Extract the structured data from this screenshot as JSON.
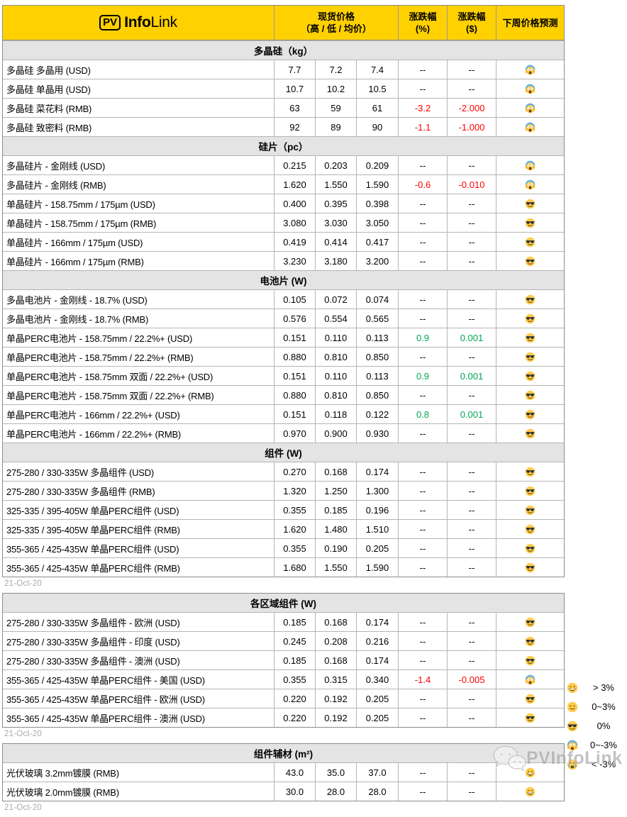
{
  "brand": {
    "pv": "PV",
    "info": "Info",
    "link": "Link"
  },
  "columns": {
    "price_title": "现货价格",
    "price_sub": "（高 / 低 / 均价）",
    "pct_line1": "涨跌幅",
    "pct_line2": "(%)",
    "usd_line1": "涨跌幅",
    "usd_line2": "($)",
    "forecast": "下周价格预测"
  },
  "colors": {
    "header_bg": "#FFD100",
    "section_bg": "#E4E4E4",
    "positive": "#00A651",
    "negative": "#FF0000",
    "date_text": "#A9A9A9"
  },
  "tables": [
    {
      "show_header": true,
      "date": "21-Oct-20",
      "sections": [
        {
          "title": "多晶硅（kg）",
          "rows": [
            {
              "label": "多晶硅 多晶用 (USD)",
              "high": "7.7",
              "low": "7.2",
              "avg": "7.4",
              "pct": "--",
              "usd": "--",
              "forecast": "scream-emoji"
            },
            {
              "label": "多晶硅 单晶用 (USD)",
              "high": "10.7",
              "low": "10.2",
              "avg": "10.5",
              "pct": "--",
              "usd": "--",
              "forecast": "scream-emoji"
            },
            {
              "label": "多晶硅 菜花料 (RMB)",
              "high": "63",
              "low": "59",
              "avg": "61",
              "pct": "-3.2",
              "usd": "-2.000",
              "forecast": "scream-emoji"
            },
            {
              "label": "多晶硅 致密料 (RMB)",
              "high": "92",
              "low": "89",
              "avg": "90",
              "pct": "-1.1",
              "usd": "-1.000",
              "forecast": "scream-emoji"
            }
          ]
        },
        {
          "title": "硅片（pc）",
          "rows": [
            {
              "label": "多晶硅片 - 金刚线 (USD)",
              "high": "0.215",
              "low": "0.203",
              "avg": "0.209",
              "pct": "--",
              "usd": "--",
              "forecast": "scream-emoji"
            },
            {
              "label": "多晶硅片 - 金刚线 (RMB)",
              "high": "1.620",
              "low": "1.550",
              "avg": "1.590",
              "pct": "-0.6",
              "usd": "-0.010",
              "forecast": "scream-emoji"
            },
            {
              "label": "单晶硅片 - 158.75mm / 175µm (USD)",
              "high": "0.400",
              "low": "0.395",
              "avg": "0.398",
              "pct": "--",
              "usd": "--",
              "forecast": "cool-emoji"
            },
            {
              "label": "单晶硅片 - 158.75mm / 175µm (RMB)",
              "high": "3.080",
              "low": "3.030",
              "avg": "3.050",
              "pct": "--",
              "usd": "--",
              "forecast": "cool-emoji"
            },
            {
              "label": "单晶硅片 - 166mm / 175µm (USD)",
              "high": "0.419",
              "low": "0.414",
              "avg": "0.417",
              "pct": "--",
              "usd": "--",
              "forecast": "cool-emoji"
            },
            {
              "label": "单晶硅片 - 166mm / 175µm (RMB)",
              "high": "3.230",
              "low": "3.180",
              "avg": "3.200",
              "pct": "--",
              "usd": "--",
              "forecast": "cool-emoji"
            }
          ]
        },
        {
          "title": "电池片 (W)",
          "rows": [
            {
              "label": "多晶电池片 - 金刚线 - 18.7% (USD)",
              "high": "0.105",
              "low": "0.072",
              "avg": "0.074",
              "pct": "--",
              "usd": "--",
              "forecast": "cool-emoji"
            },
            {
              "label": "多晶电池片 - 金刚线 - 18.7% (RMB)",
              "high": "0.576",
              "low": "0.554",
              "avg": "0.565",
              "pct": "--",
              "usd": "--",
              "forecast": "cool-emoji"
            },
            {
              "label": "单晶PERC电池片 - 158.75mm / 22.2%+ (USD)",
              "high": "0.151",
              "low": "0.110",
              "avg": "0.113",
              "pct": "0.9",
              "usd": "0.001",
              "forecast": "cool-emoji"
            },
            {
              "label": "单晶PERC电池片 - 158.75mm / 22.2%+ (RMB)",
              "high": "0.880",
              "low": "0.810",
              "avg": "0.850",
              "pct": "--",
              "usd": "--",
              "forecast": "cool-emoji"
            },
            {
              "label": "单晶PERC电池片 - 158.75mm 双面 / 22.2%+ (USD)",
              "high": "0.151",
              "low": "0.110",
              "avg": "0.113",
              "pct": "0.9",
              "usd": "0.001",
              "forecast": "cool-emoji"
            },
            {
              "label": "单晶PERC电池片 - 158.75mm 双面 / 22.2%+ (RMB)",
              "high": "0.880",
              "low": "0.810",
              "avg": "0.850",
              "pct": "--",
              "usd": "--",
              "forecast": "cool-emoji"
            },
            {
              "label": "单晶PERC电池片 - 166mm / 22.2%+ (USD)",
              "high": "0.151",
              "low": "0.118",
              "avg": "0.122",
              "pct": "0.8",
              "usd": "0.001",
              "forecast": "cool-emoji"
            },
            {
              "label": "单晶PERC电池片 - 166mm / 22.2%+ (RMB)",
              "high": "0.970",
              "low": "0.900",
              "avg": "0.930",
              "pct": "--",
              "usd": "--",
              "forecast": "cool-emoji"
            }
          ]
        },
        {
          "title": "组件 (W)",
          "rows": [
            {
              "label": "275-280 / 330-335W 多晶组件 (USD)",
              "high": "0.270",
              "low": "0.168",
              "avg": "0.174",
              "pct": "--",
              "usd": "--",
              "forecast": "cool-emoji"
            },
            {
              "label": "275-280 / 330-335W 多晶组件 (RMB)",
              "high": "1.320",
              "low": "1.250",
              "avg": "1.300",
              "pct": "--",
              "usd": "--",
              "forecast": "cool-emoji"
            },
            {
              "label": "325-335 / 395-405W 单晶PERC组件 (USD)",
              "high": "0.355",
              "low": "0.185",
              "avg": "0.196",
              "pct": "--",
              "usd": "--",
              "forecast": "cool-emoji"
            },
            {
              "label": "325-335 / 395-405W 单晶PERC组件 (RMB)",
              "high": "1.620",
              "low": "1.480",
              "avg": "1.510",
              "pct": "--",
              "usd": "--",
              "forecast": "cool-emoji"
            },
            {
              "label": "355-365 / 425-435W 单晶PERC组件 (USD)",
              "high": "0.355",
              "low": "0.190",
              "avg": "0.205",
              "pct": "--",
              "usd": "--",
              "forecast": "cool-emoji"
            },
            {
              "label": "355-365 / 425-435W 单晶PERC组件 (RMB)",
              "high": "1.680",
              "low": "1.550",
              "avg": "1.590",
              "pct": "--",
              "usd": "--",
              "forecast": "cool-emoji"
            }
          ]
        }
      ]
    },
    {
      "show_header": false,
      "date": "21-Oct-20",
      "sections": [
        {
          "title": "各区域组件 (W)",
          "rows": [
            {
              "label": "275-280 / 330-335W  多晶组件 - 欧洲 (USD)",
              "high": "0.185",
              "low": "0.168",
              "avg": "0.174",
              "pct": "--",
              "usd": "--",
              "forecast": "cool-emoji"
            },
            {
              "label": "275-280 / 330-335W  多晶组件 - 印度 (USD)",
              "high": "0.245",
              "low": "0.208",
              "avg": "0.216",
              "pct": "--",
              "usd": "--",
              "forecast": "cool-emoji"
            },
            {
              "label": "275-280 / 330-335W  多晶组件 - 澳洲 (USD)",
              "high": "0.185",
              "low": "0.168",
              "avg": "0.174",
              "pct": "--",
              "usd": "--",
              "forecast": "cool-emoji"
            },
            {
              "label": "355-365 / 425-435W 单晶PERC组件 - 美国 (USD)",
              "high": "0.355",
              "low": "0.315",
              "avg": "0.340",
              "pct": "-1.4",
              "usd": "-0.005",
              "forecast": "scream-emoji"
            },
            {
              "label": "355-365 / 425-435W 单晶PERC组件 - 欧洲 (USD)",
              "high": "0.220",
              "low": "0.192",
              "avg": "0.205",
              "pct": "--",
              "usd": "--",
              "forecast": "cool-emoji"
            },
            {
              "label": "355-365 / 425-435W 单晶PERC组件 - 澳洲 (USD)",
              "high": "0.220",
              "low": "0.192",
              "avg": "0.205",
              "pct": "--",
              "usd": "--",
              "forecast": "cool-emoji"
            }
          ]
        }
      ]
    },
    {
      "show_header": false,
      "date": "21-Oct-20",
      "sections": [
        {
          "title": "组件辅材 (m²)",
          "rows": [
            {
              "label": "光伏玻璃 3.2mm镀膜 (RMB)",
              "high": "43.0",
              "low": "35.0",
              "avg": "37.0",
              "pct": "--",
              "usd": "--",
              "forecast": "grin-emoji"
            },
            {
              "label": "光伏玻璃 2.0mm镀膜 (RMB)",
              "high": "30.0",
              "low": "28.0",
              "avg": "28.0",
              "pct": "--",
              "usd": "--",
              "forecast": "grin-emoji"
            }
          ]
        }
      ]
    }
  ],
  "legend": {
    "items": [
      {
        "icon": "grin-emoji",
        "label": "> 3%"
      },
      {
        "icon": "smile-emoji",
        "label": "0~3%"
      },
      {
        "icon": "cool-emoji",
        "label": "0%"
      },
      {
        "icon": "scream-emoji",
        "label": "0~-3%"
      },
      {
        "icon": "cry-emoji",
        "label": "< -3%"
      }
    ]
  },
  "watermark": {
    "text": "PVInfoLink"
  }
}
